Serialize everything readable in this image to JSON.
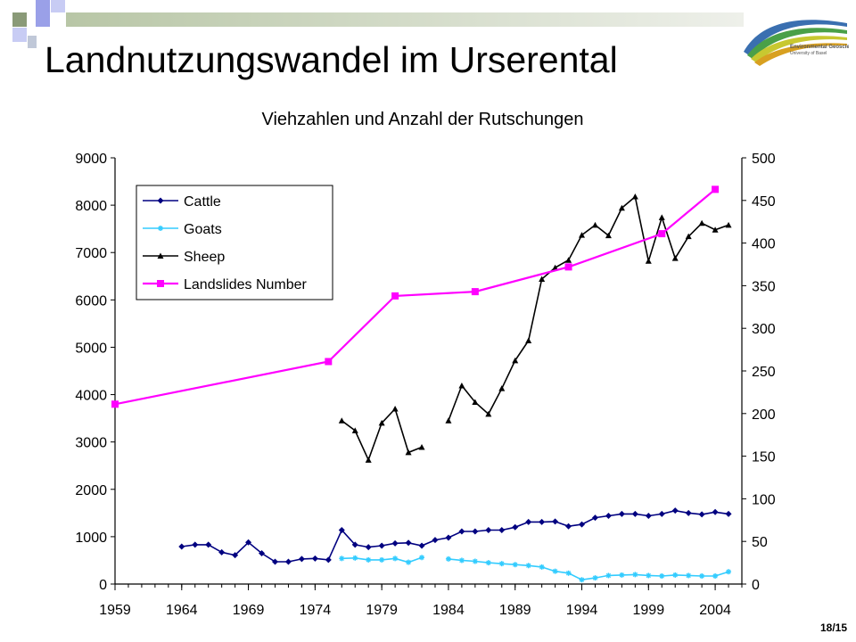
{
  "slide": {
    "title": "Landnutzungswandel im Urserental",
    "page_number": "18/15",
    "logo_text": [
      "Environmental Geosciences",
      "University of Basel"
    ]
  },
  "colors": {
    "cattle": "#000080",
    "goats": "#33ccff",
    "sheep": "#000000",
    "landslides": "#ff00ff",
    "header_bar": "#b8c6a6",
    "header_square_blue": "#9aa0e8",
    "header_square_green": "#8a9a78"
  },
  "chart_data": {
    "type": "line",
    "title": "Viehzahlen und Anzahl der Rutschungen",
    "xlabel": "",
    "ylabel_left": "",
    "ylabel_right": "",
    "xlim": [
      1959,
      2006
    ],
    "ylim_left": [
      0,
      9000
    ],
    "ylim_right": [
      0,
      500
    ],
    "xticks": [
      "1959",
      "1964",
      "1969",
      "1974",
      "1979",
      "1984",
      "1989",
      "1994",
      "1999",
      "2004"
    ],
    "yticks_left": [
      "0",
      "1000",
      "2000",
      "3000",
      "4000",
      "5000",
      "6000",
      "7000",
      "8000",
      "9000"
    ],
    "yticks_right": [
      "0",
      "50",
      "100",
      "150",
      "200",
      "250",
      "300",
      "350",
      "400",
      "450",
      "500"
    ],
    "grid": false,
    "legend_position": "top-left",
    "series": [
      {
        "name": "Cattle",
        "axis": "left",
        "marker": "diamond",
        "points": [
          [
            1964,
            790
          ],
          [
            1965,
            830
          ],
          [
            1966,
            830
          ],
          [
            1967,
            670
          ],
          [
            1968,
            610
          ],
          [
            1969,
            880
          ],
          [
            1970,
            650
          ],
          [
            1971,
            470
          ],
          [
            1972,
            470
          ],
          [
            1973,
            530
          ],
          [
            1974,
            540
          ],
          [
            1975,
            510
          ],
          [
            1976,
            1140
          ],
          [
            1977,
            830
          ],
          [
            1978,
            780
          ],
          [
            1979,
            810
          ],
          [
            1980,
            860
          ],
          [
            1981,
            870
          ],
          [
            1982,
            810
          ],
          [
            1983,
            930
          ],
          [
            1984,
            980
          ],
          [
            1985,
            1110
          ],
          [
            1986,
            1110
          ],
          [
            1987,
            1140
          ],
          [
            1988,
            1140
          ],
          [
            1989,
            1200
          ],
          [
            1990,
            1310
          ],
          [
            1991,
            1310
          ],
          [
            1992,
            1320
          ],
          [
            1993,
            1220
          ],
          [
            1994,
            1260
          ],
          [
            1995,
            1400
          ],
          [
            1996,
            1440
          ],
          [
            1997,
            1480
          ],
          [
            1998,
            1480
          ],
          [
            1999,
            1440
          ],
          [
            2000,
            1480
          ],
          [
            2001,
            1550
          ],
          [
            2002,
            1500
          ],
          [
            2003,
            1470
          ],
          [
            2004,
            1520
          ],
          [
            2005,
            1480
          ]
        ]
      },
      {
        "name": "Goats",
        "axis": "left",
        "marker": "asterisk",
        "points": [
          [
            1976,
            540
          ],
          [
            1977,
            550
          ],
          [
            1978,
            510
          ],
          [
            1979,
            510
          ],
          [
            1980,
            540
          ],
          [
            1981,
            460
          ],
          [
            1982,
            560
          ],
          null,
          [
            1984,
            530
          ],
          [
            1985,
            500
          ],
          [
            1986,
            480
          ],
          [
            1987,
            450
          ],
          [
            1988,
            430
          ],
          [
            1989,
            410
          ],
          [
            1990,
            390
          ],
          [
            1991,
            360
          ],
          [
            1992,
            270
          ],
          [
            1993,
            230
          ],
          [
            1994,
            90
          ],
          [
            1995,
            130
          ],
          [
            1996,
            180
          ],
          [
            1997,
            190
          ],
          [
            1998,
            200
          ],
          [
            1999,
            180
          ],
          [
            2000,
            170
          ],
          [
            2001,
            190
          ],
          [
            2002,
            180
          ],
          [
            2003,
            170
          ],
          [
            2004,
            170
          ],
          [
            2005,
            260
          ]
        ]
      },
      {
        "name": "Sheep",
        "axis": "left",
        "marker": "triangle",
        "points": [
          [
            1976,
            3450
          ],
          [
            1977,
            3240
          ],
          [
            1978,
            2620
          ],
          [
            1979,
            3400
          ],
          [
            1980,
            3700
          ],
          [
            1981,
            2780
          ],
          [
            1982,
            2890
          ],
          null,
          [
            1984,
            3450
          ],
          [
            1985,
            4190
          ],
          [
            1986,
            3840
          ],
          [
            1987,
            3590
          ],
          [
            1988,
            4130
          ],
          [
            1989,
            4720
          ],
          [
            1990,
            5140
          ],
          [
            1991,
            6440
          ],
          [
            1992,
            6680
          ],
          [
            1993,
            6840
          ],
          [
            1994,
            7370
          ],
          [
            1995,
            7580
          ],
          [
            1996,
            7360
          ],
          [
            1997,
            7940
          ],
          [
            1998,
            8180
          ],
          [
            1999,
            6820
          ],
          [
            2000,
            7740
          ],
          [
            2001,
            6880
          ],
          [
            2002,
            7340
          ],
          [
            2003,
            7620
          ],
          [
            2004,
            7480
          ],
          [
            2005,
            7580
          ]
        ]
      },
      {
        "name": "Landslides Number",
        "axis": "right",
        "marker": "square",
        "points": [
          [
            1959,
            211
          ],
          [
            1975,
            261
          ],
          [
            1980,
            338
          ],
          [
            1986,
            343
          ],
          [
            1993,
            372
          ],
          [
            2000,
            411
          ],
          [
            2004,
            463
          ]
        ]
      }
    ]
  }
}
